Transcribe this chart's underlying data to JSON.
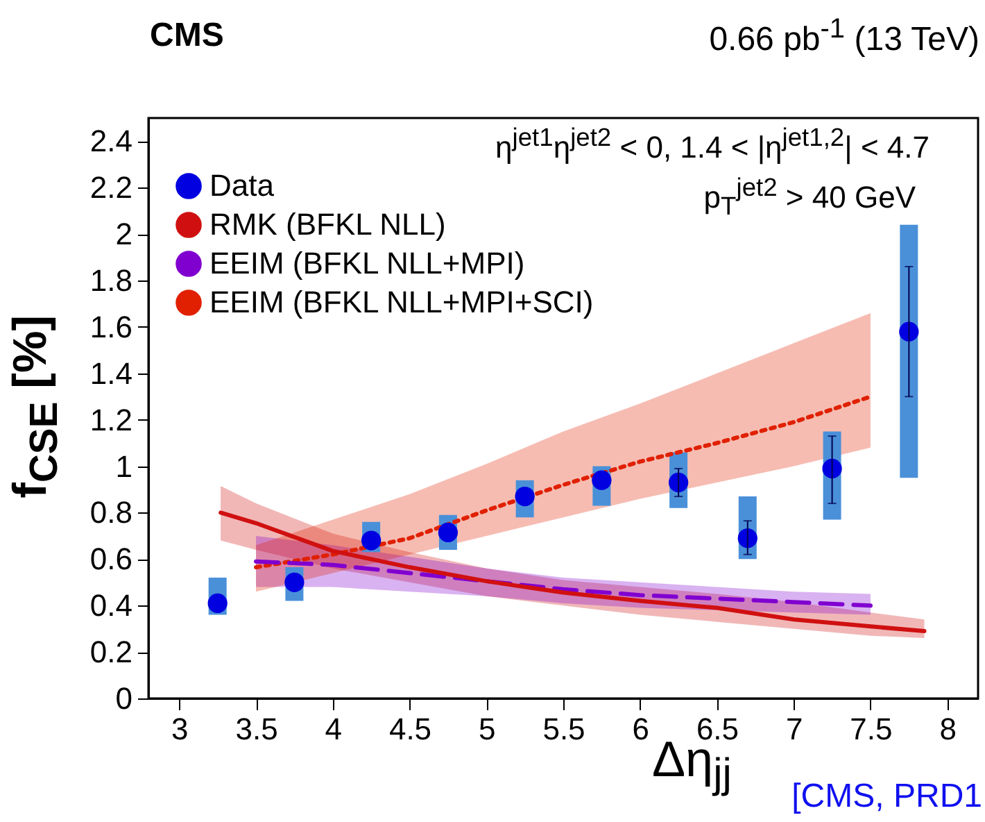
{
  "chart_data": {
    "type": "scatter",
    "title": "CMS",
    "subtitle": "0.66 pb$^{-1}$ (13 TeV)",
    "xlabel": "Δη$_{jj}$",
    "ylabel": "f$_{CSE}$ [%]",
    "annotations": [
      "η$^{jet1}$η$^{jet2}$ < 0,  1.4 < |η$^{jet1,2}$| < 4.7",
      "p$_{T}$$^{jet2}$ > 40 GeV",
      "[CMS, PRD1"
    ],
    "xlim": [
      2.8,
      8.2
    ],
    "xticks": [
      3,
      3.5,
      4,
      4.5,
      5,
      5.5,
      6,
      6.5,
      7,
      7.5,
      8
    ],
    "ylim": [
      0,
      2.5
    ],
    "yticks": [
      0,
      0.2,
      0.4,
      0.6,
      0.8,
      1,
      1.2,
      1.4,
      1.6,
      1.8,
      2,
      2.2,
      2.4
    ],
    "grid": false,
    "legend": "top left",
    "marker": "circle",
    "series": [
      {
        "type": "bar",
        "color": "#4a90d9",
        "x": [
          3.25,
          3.75,
          4.25,
          4.75,
          5.25,
          5.75,
          6.25,
          6.7,
          7.25,
          7.75
        ],
        "base": [
          0.36,
          0.42,
          0.63,
          0.64,
          0.78,
          0.83,
          0.82,
          0.6,
          0.77,
          0.95
        ],
        "values": [
          0.16,
          0.145,
          0.13,
          0.15,
          0.16,
          0.17,
          0.24,
          0.27,
          0.38,
          1.09
        ]
      },
      {
        "name": "Data",
        "color": "#0000e0",
        "x": [
          3.25,
          3.75,
          4.25,
          4.75,
          5.25,
          5.75,
          6.25,
          6.7,
          7.25,
          7.75
        ],
        "values": [
          0.41,
          0.5,
          0.68,
          0.715,
          0.87,
          0.94,
          0.93,
          0.69,
          0.99,
          1.58
        ],
        "errors": [
          null,
          null,
          null,
          null,
          null,
          null,
          [
            0.87,
            0.99
          ],
          [
            0.62,
            0.765
          ],
          [
            0.84,
            1.13
          ],
          [
            1.3,
            1.86
          ]
        ]
      },
      {
        "name": "RMK (BFKL NLL)",
        "type": "line",
        "marker": "none",
        "color": "#d01010",
        "line_style": "solid",
        "x": [
          3.27,
          3.5,
          4,
          4.5,
          5,
          5.5,
          6,
          6.5,
          7,
          7.5,
          7.85
        ],
        "values": [
          0.8,
          0.755,
          0.635,
          0.565,
          0.505,
          0.456,
          0.42,
          0.39,
          0.34,
          0.31,
          0.29
        ],
        "lower": [
          0.68,
          0.64,
          0.56,
          0.5,
          0.44,
          0.4,
          0.36,
          0.33,
          0.3,
          0.27,
          0.26
        ],
        "upper": [
          0.915,
          0.84,
          0.71,
          0.63,
          0.56,
          0.51,
          0.48,
          0.45,
          0.415,
          0.37,
          0.34
        ]
      },
      {
        "name": "EEIM (BFKL NLL+MPI)",
        "type": "line",
        "marker": "none",
        "color": "#8000d0",
        "line_style": "dashed",
        "x": [
          3.5,
          4,
          4.5,
          5,
          5.5,
          6,
          6.5,
          7,
          7.5
        ],
        "values": [
          0.59,
          0.575,
          0.54,
          0.505,
          0.47,
          0.445,
          0.43,
          0.415,
          0.4
        ],
        "lower": [
          0.48,
          0.48,
          0.46,
          0.44,
          0.41,
          0.39,
          0.38,
          0.37,
          0.36
        ],
        "upper": [
          0.7,
          0.66,
          0.61,
          0.56,
          0.52,
          0.5,
          0.48,
          0.46,
          0.45
        ]
      },
      {
        "name": "EEIM (BFKL NLL+MPI+SCI)",
        "type": "line",
        "marker": "none",
        "color": "#e02000",
        "line_style": "dotted",
        "x": [
          3.5,
          4,
          4.5,
          5,
          5.5,
          6,
          6.5,
          7,
          7.5
        ],
        "values": [
          0.565,
          0.62,
          0.69,
          0.81,
          0.92,
          1.02,
          1.1,
          1.19,
          1.3
        ],
        "lower": [
          0.46,
          0.54,
          0.62,
          0.7,
          0.78,
          0.86,
          0.93,
          1.0,
          1.08
        ],
        "upper": [
          0.66,
          0.77,
          0.88,
          1.01,
          1.15,
          1.27,
          1.4,
          1.53,
          1.66
        ]
      }
    ]
  }
}
